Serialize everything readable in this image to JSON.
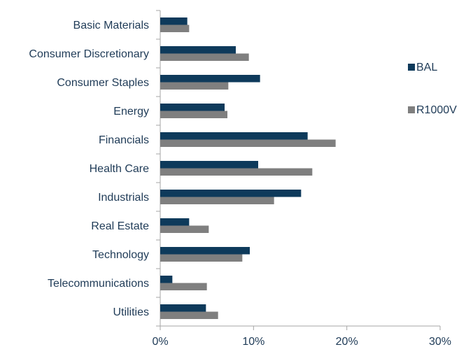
{
  "chart_data": {
    "type": "bar",
    "orientation": "horizontal",
    "categories": [
      "Basic Materials",
      "Consumer Discretionary",
      "Consumer Staples",
      "Energy",
      "Financials",
      "Health Care",
      "Industrials",
      "Real Estate",
      "Technology",
      "Telecommunications",
      "Utilities"
    ],
    "series": [
      {
        "name": "BAL",
        "color": "#0e3a5b",
        "values": [
          2.9,
          8.1,
          10.7,
          6.9,
          15.8,
          10.5,
          15.1,
          3.1,
          9.6,
          1.3,
          4.9
        ]
      },
      {
        "name": "R1000V",
        "color": "#7f7f7f",
        "values": [
          3.1,
          9.5,
          7.3,
          7.2,
          18.8,
          16.3,
          12.2,
          5.2,
          8.8,
          5.0,
          6.2
        ]
      }
    ],
    "xlim": [
      0,
      30
    ],
    "xticks": [
      "0%",
      "10%",
      "20%",
      "30%"
    ],
    "title": "",
    "xlabel": "",
    "ylabel": "",
    "grid": false,
    "legend": "right"
  }
}
